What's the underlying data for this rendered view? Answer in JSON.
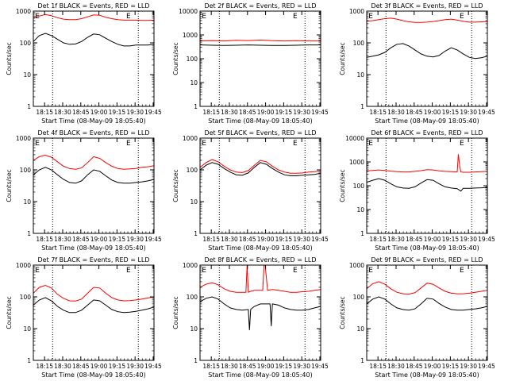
{
  "figure": {
    "ylabel": "Counts/sec",
    "xlabel": "Start Time (08-May-09 18:05:40)",
    "xticks": [
      "18:15",
      "18:30",
      "18:45",
      "19:00",
      "19:15",
      "19:30",
      "19:45"
    ],
    "xtick_values": [
      9.33,
      24.33,
      39.33,
      54.33,
      69.33,
      84.33,
      99.33
    ],
    "xlim": [
      0,
      100
    ],
    "dotted_lines": [
      16,
      87
    ],
    "markers": [
      {
        "x": 1.5,
        "label": "E"
      },
      {
        "x": 77,
        "label": "E"
      }
    ],
    "colors": {
      "events": "#000000",
      "lld": "#ff0000",
      "axes": "#000000"
    }
  },
  "chart_data": [
    {
      "type": "line",
      "title": "Det 1f BLACK = Events, RED = LLD",
      "yscale": "log",
      "ylim": [
        1,
        1000
      ],
      "yticks": [
        "1",
        "10",
        "100",
        "1000"
      ],
      "series": [
        {
          "name": "Events",
          "color": "#000000",
          "x": [
            0,
            5,
            10,
            15,
            20,
            25,
            30,
            35,
            40,
            45,
            50,
            55,
            60,
            65,
            70,
            75,
            80,
            85,
            90,
            95,
            100
          ],
          "y": [
            110,
            170,
            200,
            170,
            130,
            100,
            90,
            92,
            110,
            150,
            190,
            180,
            140,
            110,
            90,
            80,
            80,
            85,
            85,
            85,
            90
          ]
        },
        {
          "name": "LLD",
          "color": "#ff0000",
          "x": [
            0,
            5,
            10,
            15,
            20,
            25,
            30,
            35,
            40,
            45,
            50,
            55,
            60,
            65,
            70,
            75,
            80,
            85,
            90,
            95,
            100
          ],
          "y": [
            620,
            700,
            780,
            720,
            620,
            560,
            540,
            540,
            580,
            660,
            760,
            740,
            640,
            580,
            540,
            520,
            520,
            520,
            510,
            510,
            520
          ]
        }
      ]
    },
    {
      "type": "line",
      "title": "Det 2f BLACK = Events, RED = LLD",
      "yscale": "log",
      "ylim": [
        1,
        10000
      ],
      "yticks": [
        "1",
        "10",
        "100",
        "1000",
        "10000"
      ],
      "series": [
        {
          "name": "Events",
          "color": "#000000",
          "x": [
            0,
            10,
            20,
            30,
            40,
            50,
            60,
            70,
            80,
            90,
            100
          ],
          "y": [
            380,
            370,
            360,
            370,
            380,
            370,
            360,
            360,
            370,
            380,
            380
          ]
        },
        {
          "name": "LLD",
          "color": "#ff0000",
          "x": [
            0,
            10,
            20,
            30,
            40,
            50,
            60,
            70,
            80,
            90,
            100
          ],
          "y": [
            560,
            570,
            560,
            600,
            580,
            610,
            570,
            560,
            570,
            560,
            560
          ]
        }
      ]
    },
    {
      "type": "line",
      "title": "Det 3f BLACK = Events, RED = LLD",
      "yscale": "log",
      "ylim": [
        1,
        1000
      ],
      "yticks": [
        "1",
        "10",
        "100",
        "1000"
      ],
      "series": [
        {
          "name": "Events",
          "color": "#000000",
          "x": [
            0,
            5,
            10,
            15,
            20,
            25,
            30,
            35,
            40,
            45,
            50,
            55,
            60,
            65,
            70,
            75,
            80,
            85,
            90,
            95,
            100
          ],
          "y": [
            35,
            38,
            42,
            50,
            70,
            90,
            95,
            80,
            60,
            45,
            38,
            36,
            40,
            55,
            70,
            60,
            45,
            35,
            32,
            34,
            38
          ]
        },
        {
          "name": "LLD",
          "color": "#ff0000",
          "x": [
            0,
            5,
            10,
            15,
            20,
            25,
            30,
            35,
            40,
            45,
            50,
            55,
            60,
            65,
            70,
            75,
            80,
            85,
            90,
            95,
            100
          ],
          "y": [
            480,
            500,
            540,
            580,
            600,
            560,
            500,
            460,
            440,
            440,
            450,
            470,
            500,
            540,
            560,
            520,
            480,
            450,
            450,
            460,
            470
          ]
        }
      ]
    },
    {
      "type": "line",
      "title": "Det 4f BLACK = Events, RED = LLD",
      "yscale": "log",
      "ylim": [
        1,
        1000
      ],
      "yticks": [
        "1",
        "10",
        "100",
        "1000"
      ],
      "series": [
        {
          "name": "Events",
          "color": "#000000",
          "x": [
            0,
            5,
            10,
            15,
            20,
            25,
            30,
            35,
            40,
            45,
            50,
            55,
            60,
            65,
            70,
            75,
            80,
            85,
            90,
            95,
            100
          ],
          "y": [
            70,
            100,
            120,
            100,
            70,
            50,
            40,
            38,
            45,
            70,
            100,
            90,
            65,
            48,
            40,
            38,
            38,
            40,
            42,
            45,
            50
          ]
        },
        {
          "name": "LLD",
          "color": "#ff0000",
          "x": [
            0,
            5,
            10,
            15,
            20,
            25,
            30,
            35,
            40,
            45,
            50,
            55,
            60,
            65,
            70,
            75,
            80,
            85,
            90,
            95,
            100
          ],
          "y": [
            200,
            260,
            290,
            250,
            180,
            130,
            110,
            105,
            115,
            170,
            260,
            230,
            170,
            130,
            110,
            105,
            108,
            110,
            120,
            125,
            135
          ]
        }
      ]
    },
    {
      "type": "line",
      "title": "Det 5f BLACK = Events, RED = LLD",
      "yscale": "log",
      "ylim": [
        1,
        1000
      ],
      "yticks": [
        "1",
        "10",
        "100",
        "1000"
      ],
      "series": [
        {
          "name": "Events",
          "color": "#000000",
          "x": [
            0,
            5,
            10,
            15,
            20,
            25,
            30,
            35,
            40,
            45,
            50,
            55,
            60,
            65,
            70,
            75,
            80,
            85,
            90,
            95,
            100
          ],
          "y": [
            100,
            140,
            170,
            150,
            110,
            85,
            70,
            68,
            80,
            120,
            170,
            150,
            110,
            85,
            70,
            65,
            65,
            68,
            70,
            72,
            78
          ]
        },
        {
          "name": "LLD",
          "color": "#ff0000",
          "x": [
            0,
            5,
            10,
            15,
            20,
            25,
            30,
            35,
            40,
            45,
            50,
            55,
            60,
            65,
            70,
            75,
            80,
            85,
            90,
            95,
            100
          ],
          "y": [
            120,
            170,
            210,
            180,
            130,
            100,
            85,
            82,
            95,
            140,
            200,
            180,
            130,
            100,
            85,
            78,
            78,
            80,
            85,
            88,
            92
          ]
        }
      ]
    },
    {
      "type": "line",
      "title": "Det 6f BLACK = Events, RED = LLD",
      "yscale": "log",
      "ylim": [
        1,
        10000
      ],
      "yticks": [
        "1",
        "10",
        "100",
        "1000",
        "10000"
      ],
      "series": [
        {
          "name": "Events",
          "color": "#000000",
          "x": [
            0,
            5,
            10,
            15,
            20,
            25,
            30,
            35,
            40,
            45,
            50,
            55,
            60,
            65,
            70,
            75,
            78,
            80,
            85,
            90,
            95,
            100
          ],
          "y": [
            140,
            170,
            200,
            170,
            120,
            90,
            80,
            78,
            90,
            130,
            180,
            170,
            120,
            90,
            80,
            75,
            60,
            78,
            78,
            80,
            82,
            85
          ]
        },
        {
          "name": "LLD",
          "color": "#ff0000",
          "x": [
            0,
            5,
            10,
            15,
            20,
            25,
            30,
            35,
            40,
            45,
            50,
            55,
            60,
            65,
            70,
            75,
            76,
            77,
            78,
            80,
            85,
            90,
            95,
            100
          ],
          "y": [
            420,
            440,
            460,
            440,
            410,
            390,
            380,
            380,
            400,
            430,
            470,
            460,
            420,
            400,
            390,
            380,
            2100,
            700,
            380,
            370,
            370,
            380,
            390,
            400
          ]
        }
      ]
    },
    {
      "type": "line",
      "title": "Det 7f BLACK = Events, RED = LLD",
      "yscale": "log",
      "ylim": [
        1,
        1000
      ],
      "yticks": [
        "1",
        "10",
        "100",
        "1000"
      ],
      "series": [
        {
          "name": "Events",
          "color": "#000000",
          "x": [
            0,
            5,
            10,
            15,
            20,
            25,
            30,
            35,
            40,
            45,
            50,
            55,
            60,
            65,
            70,
            75,
            80,
            85,
            90,
            95,
            100
          ],
          "y": [
            55,
            80,
            95,
            75,
            50,
            38,
            32,
            32,
            38,
            55,
            80,
            75,
            55,
            40,
            34,
            32,
            33,
            35,
            38,
            42,
            48
          ]
        },
        {
          "name": "LLD",
          "color": "#ff0000",
          "x": [
            0,
            5,
            10,
            15,
            20,
            25,
            30,
            35,
            40,
            45,
            50,
            55,
            60,
            65,
            70,
            75,
            80,
            85,
            90,
            95,
            100
          ],
          "y": [
            130,
            200,
            230,
            190,
            120,
            90,
            75,
            74,
            85,
            130,
            200,
            190,
            130,
            95,
            80,
            75,
            76,
            80,
            85,
            92,
            100
          ]
        }
      ]
    },
    {
      "type": "line",
      "title": "Det 8f BLACK = Events, RED = LLD",
      "yscale": "log",
      "ylim": [
        1,
        1000
      ],
      "yticks": [
        "1",
        "10",
        "100",
        "1000"
      ],
      "series": [
        {
          "name": "Events",
          "color": "#000000",
          "x": [
            0,
            5,
            10,
            15,
            20,
            25,
            30,
            35,
            40,
            41,
            42,
            45,
            50,
            55,
            58,
            59,
            60,
            65,
            70,
            75,
            80,
            85,
            90,
            95,
            100
          ],
          "y": [
            70,
            90,
            100,
            85,
            60,
            45,
            40,
            38,
            40,
            9,
            40,
            50,
            60,
            60,
            60,
            12,
            60,
            55,
            45,
            40,
            38,
            38,
            40,
            45,
            50
          ]
        },
        {
          "name": "LLD",
          "color": "#ff0000",
          "x": [
            0,
            5,
            10,
            15,
            20,
            25,
            30,
            35,
            38,
            39,
            40,
            42,
            45,
            50,
            52,
            53,
            54,
            56,
            60,
            65,
            70,
            75,
            80,
            85,
            90,
            95,
            100
          ],
          "y": [
            200,
            250,
            280,
            240,
            180,
            150,
            140,
            140,
            140,
            1000,
            140,
            150,
            160,
            160,
            160,
            1000,
            1000,
            160,
            170,
            160,
            150,
            140,
            140,
            145,
            150,
            160,
            170
          ]
        }
      ]
    },
    {
      "type": "line",
      "title": "Det 9f BLACK = Events, RED = LLD",
      "yscale": "log",
      "ylim": [
        1,
        1000
      ],
      "yticks": [
        "1",
        "10",
        "100",
        "1000"
      ],
      "series": [
        {
          "name": "Events",
          "color": "#000000",
          "x": [
            0,
            5,
            10,
            15,
            20,
            25,
            30,
            35,
            40,
            45,
            50,
            55,
            60,
            65,
            70,
            75,
            80,
            85,
            90,
            95,
            100
          ],
          "y": [
            60,
            85,
            100,
            85,
            60,
            45,
            40,
            38,
            42,
            60,
            90,
            85,
            62,
            48,
            40,
            38,
            38,
            40,
            42,
            45,
            50
          ]
        },
        {
          "name": "LLD",
          "color": "#ff0000",
          "x": [
            0,
            5,
            10,
            15,
            20,
            25,
            30,
            35,
            40,
            45,
            50,
            55,
            60,
            65,
            70,
            75,
            80,
            85,
            90,
            95,
            100
          ],
          "y": [
            180,
            260,
            300,
            250,
            180,
            140,
            125,
            122,
            135,
            190,
            270,
            250,
            190,
            150,
            130,
            125,
            125,
            130,
            140,
            150,
            160
          ]
        }
      ]
    }
  ]
}
